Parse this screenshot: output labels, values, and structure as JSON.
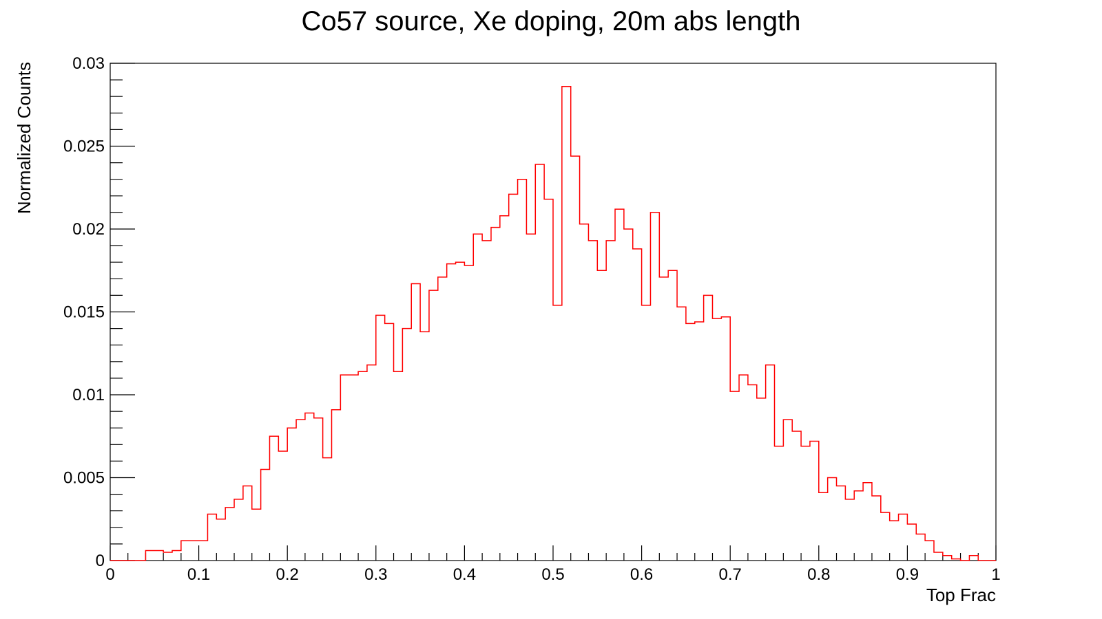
{
  "chart_data": {
    "type": "histogram",
    "title": "Co57 source, Xe doping, 20m abs length",
    "xlabel": "Top Frac",
    "ylabel": "Normalized Counts",
    "xlim": [
      0,
      1
    ],
    "ylim": [
      0,
      0.03
    ],
    "x_ticks": [
      "0",
      "0.1",
      "0.2",
      "0.3",
      "0.4",
      "0.5",
      "0.6",
      "0.7",
      "0.8",
      "0.9",
      "1"
    ],
    "y_ticks": [
      "0",
      "0.005",
      "0.01",
      "0.015",
      "0.02",
      "0.025",
      "0.03"
    ],
    "grid": false,
    "legend": "none",
    "line_color": "#ff0000",
    "bins": {
      "x_start": 0,
      "bin_width": 0.01,
      "values": [
        0,
        0,
        0,
        0,
        0.0006,
        0.0006,
        0.0005,
        0.0006,
        0.0012,
        0.0012,
        0.0012,
        0.0028,
        0.0025,
        0.0032,
        0.0037,
        0.0045,
        0.0031,
        0.0055,
        0.0075,
        0.0066,
        0.008,
        0.0085,
        0.0089,
        0.0086,
        0.0062,
        0.0091,
        0.0112,
        0.0112,
        0.0114,
        0.0118,
        0.0148,
        0.0143,
        0.0114,
        0.014,
        0.0167,
        0.0138,
        0.0163,
        0.0171,
        0.0179,
        0.018,
        0.0178,
        0.0197,
        0.0193,
        0.0201,
        0.0208,
        0.0221,
        0.023,
        0.0197,
        0.0239,
        0.0218,
        0.0154,
        0.0286,
        0.0244,
        0.0203,
        0.0193,
        0.0175,
        0.0193,
        0.0212,
        0.02,
        0.0188,
        0.0154,
        0.021,
        0.0171,
        0.0175,
        0.0153,
        0.0143,
        0.0144,
        0.016,
        0.0146,
        0.0147,
        0.0102,
        0.0112,
        0.0106,
        0.0098,
        0.0118,
        0.0069,
        0.0085,
        0.0078,
        0.0069,
        0.0072,
        0.0041,
        0.005,
        0.0045,
        0.0037,
        0.0042,
        0.0047,
        0.0039,
        0.0029,
        0.0024,
        0.0028,
        0.0022,
        0.0016,
        0.0012,
        0.0005,
        0.0003,
        0.0001,
        0,
        0.0003,
        0,
        0
      ]
    }
  }
}
